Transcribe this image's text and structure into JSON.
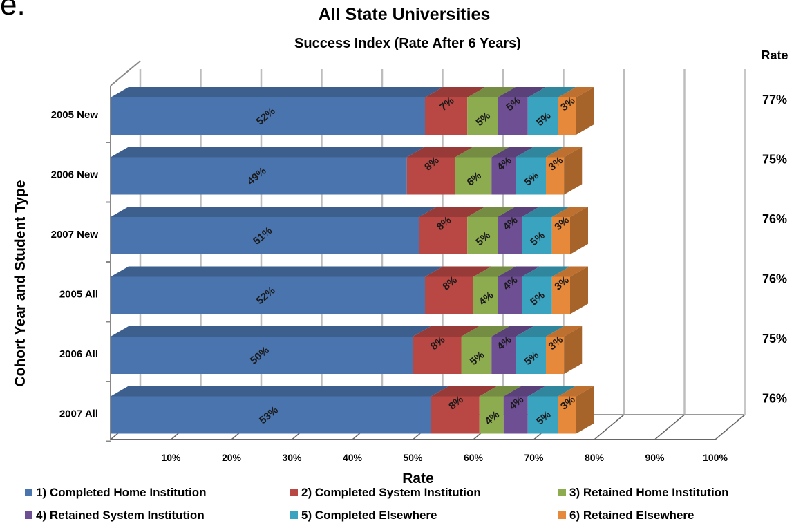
{
  "fragment_text": "e.",
  "chart_data": {
    "type": "bar",
    "orientation": "horizontal",
    "stacked": true,
    "style": "3d",
    "title": "All State Universities",
    "subtitle": "Success Index (Rate After 6 Years)",
    "xlabel": "Rate",
    "ylabel": "Cohort Year and Student Type",
    "xlim": [
      0,
      100
    ],
    "x_ticks": [
      "10%",
      "20%",
      "30%",
      "40%",
      "50%",
      "60%",
      "70%",
      "80%",
      "90%",
      "100%"
    ],
    "grid": true,
    "legend_position": "bottom",
    "categories": [
      "2005 New",
      "2006 New",
      "2007 New",
      "2005 All",
      "2006 All",
      "2007 All"
    ],
    "series": [
      {
        "name": "1) Completed Home Institution",
        "color": "#4a74ad",
        "values": [
          52,
          49,
          51,
          52,
          50,
          53
        ],
        "labels": [
          "52%",
          "49%",
          "51%",
          "52%",
          "50%",
          "53%"
        ]
      },
      {
        "name": "2) Completed System Institution",
        "color": "#b94743",
        "values": [
          7,
          8,
          8,
          8,
          8,
          8
        ],
        "labels": [
          "7%",
          "8%",
          "8%",
          "8%",
          "8%",
          "8%"
        ]
      },
      {
        "name": "3) Retained Home Institution",
        "color": "#8dac50",
        "values": [
          5,
          6,
          5,
          4,
          5,
          4
        ],
        "labels": [
          "5%",
          "6%",
          "5%",
          "4%",
          "5%",
          "4%"
        ]
      },
      {
        "name": "4) Retained System Institution",
        "color": "#6e4f94",
        "values": [
          5,
          4,
          4,
          4,
          4,
          4
        ],
        "labels": [
          "5%",
          "4%",
          "4%",
          "4%",
          "4%",
          "4%"
        ]
      },
      {
        "name": "5) Completed Elsewhere",
        "color": "#3aa3c0",
        "values": [
          5,
          5,
          5,
          5,
          5,
          5
        ],
        "labels": [
          "5%",
          "5%",
          "5%",
          "5%",
          "5%",
          "5%"
        ]
      },
      {
        "name": "6) Retained Elsewhere",
        "color": "#e6893a",
        "values": [
          3,
          3,
          3,
          3,
          3,
          3
        ],
        "labels": [
          "3%",
          "3%",
          "3%",
          "3%",
          "3%",
          "3%"
        ]
      }
    ],
    "rate_header": "Rate",
    "rate_values": [
      "77%",
      "75%",
      "76%",
      "76%",
      "75%",
      "76%"
    ]
  }
}
